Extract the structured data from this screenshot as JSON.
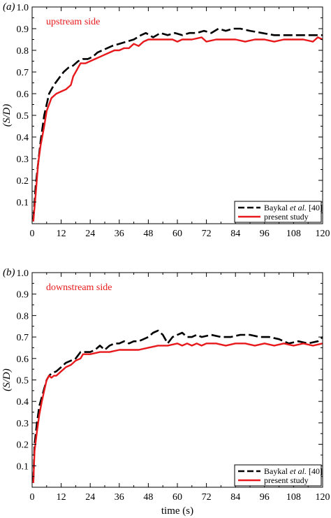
{
  "colors": {
    "baykal": "#000000",
    "present": "#e8191c",
    "annotation": "#e8191c"
  },
  "chart_data": [
    {
      "type": "line",
      "panel_label": "(a)",
      "annotation": "upstream side",
      "ylabel": "(S/D)",
      "xlabel": "",
      "xlim": [
        0,
        120
      ],
      "ylim": [
        0,
        1.0
      ],
      "xticks": [
        "0",
        "12",
        "24",
        "36",
        "48",
        "60",
        "72",
        "84",
        "96",
        "108",
        "120"
      ],
      "yticks": [
        "0.1",
        "0.2",
        "0.3",
        "0.4",
        "0.5",
        "0.6",
        "0.7",
        "0.8",
        "0.9",
        "1.0"
      ],
      "legend_position": "bottom-right",
      "grid": false,
      "series": [
        {
          "name": "Baykal et al. [40]",
          "style": "dashed",
          "color": "#000000",
          "x": [
            0.5,
            1.5,
            2.5,
            3.5,
            5,
            7,
            9,
            11,
            13,
            15,
            17,
            19,
            21,
            23,
            25,
            27,
            29,
            31,
            33,
            36,
            39,
            42,
            45,
            47,
            50,
            53,
            56,
            59,
            62,
            65,
            68,
            71,
            74,
            77,
            80,
            83,
            86,
            90,
            95,
            100,
            105,
            110,
            115,
            120
          ],
          "y": [
            0.02,
            0.18,
            0.28,
            0.38,
            0.5,
            0.6,
            0.64,
            0.67,
            0.7,
            0.72,
            0.73,
            0.75,
            0.76,
            0.76,
            0.77,
            0.79,
            0.8,
            0.81,
            0.82,
            0.83,
            0.84,
            0.85,
            0.87,
            0.88,
            0.86,
            0.88,
            0.87,
            0.88,
            0.87,
            0.88,
            0.88,
            0.89,
            0.88,
            0.9,
            0.89,
            0.9,
            0.9,
            0.89,
            0.88,
            0.87,
            0.87,
            0.87,
            0.87,
            0.87
          ]
        },
        {
          "name": "present study",
          "style": "solid",
          "color": "#e8191c",
          "x": [
            0.5,
            1.5,
            2.5,
            3.5,
            5,
            6,
            8,
            10,
            12,
            14,
            16,
            17,
            18,
            20,
            22,
            24,
            26,
            28,
            30,
            32,
            34,
            36,
            38,
            40,
            42,
            44,
            46,
            48,
            50,
            54,
            58,
            60,
            62,
            66,
            70,
            72,
            76,
            80,
            84,
            88,
            92,
            96,
            100,
            104,
            108,
            112,
            116,
            118,
            120
          ],
          "y": [
            0.01,
            0.14,
            0.28,
            0.36,
            0.45,
            0.52,
            0.58,
            0.6,
            0.61,
            0.62,
            0.64,
            0.68,
            0.7,
            0.74,
            0.74,
            0.75,
            0.76,
            0.77,
            0.78,
            0.79,
            0.8,
            0.8,
            0.81,
            0.81,
            0.83,
            0.82,
            0.84,
            0.85,
            0.85,
            0.85,
            0.85,
            0.84,
            0.85,
            0.85,
            0.86,
            0.84,
            0.85,
            0.85,
            0.85,
            0.84,
            0.85,
            0.85,
            0.84,
            0.85,
            0.85,
            0.85,
            0.84,
            0.86,
            0.85
          ]
        }
      ]
    },
    {
      "type": "line",
      "panel_label": "(b)",
      "annotation": "downstream side",
      "ylabel": "(S/D)",
      "xlabel": "time (s)",
      "xlim": [
        0,
        120
      ],
      "ylim": [
        0,
        1.0
      ],
      "xticks": [
        "0",
        "12",
        "24",
        "36",
        "48",
        "60",
        "72",
        "84",
        "96",
        "108",
        "120"
      ],
      "yticks": [
        "0.1",
        "0.2",
        "0.3",
        "0.4",
        "0.5",
        "0.6",
        "0.7",
        "0.8",
        "0.9",
        "1.0"
      ],
      "legend_position": "bottom-right",
      "grid": false,
      "series": [
        {
          "name": "Baykal et al. [40]",
          "style": "dashed",
          "color": "#000000",
          "x": [
            0.5,
            1,
            2,
            3,
            4,
            5,
            6,
            7,
            8,
            10,
            12,
            14,
            16,
            18,
            20,
            22,
            24,
            26,
            28,
            30,
            32,
            34,
            36,
            38,
            40,
            42,
            44,
            46,
            48,
            50,
            52,
            54,
            56,
            58,
            60,
            62,
            64,
            66,
            68,
            70,
            74,
            78,
            82,
            86,
            90,
            94,
            98,
            102,
            106,
            110,
            114,
            118,
            120
          ],
          "y": [
            0.03,
            0.2,
            0.3,
            0.38,
            0.42,
            0.46,
            0.5,
            0.52,
            0.53,
            0.54,
            0.56,
            0.58,
            0.59,
            0.6,
            0.63,
            0.63,
            0.63,
            0.64,
            0.66,
            0.64,
            0.66,
            0.67,
            0.67,
            0.68,
            0.67,
            0.68,
            0.68,
            0.69,
            0.7,
            0.72,
            0.73,
            0.71,
            0.67,
            0.7,
            0.71,
            0.72,
            0.7,
            0.7,
            0.71,
            0.7,
            0.71,
            0.7,
            0.7,
            0.71,
            0.71,
            0.7,
            0.7,
            0.69,
            0.67,
            0.68,
            0.67,
            0.68,
            0.7
          ]
        },
        {
          "name": "present study",
          "style": "solid",
          "color": "#e8191c",
          "x": [
            0.5,
            1,
            2,
            3,
            4,
            5,
            6,
            7,
            8,
            9,
            10,
            12,
            14,
            16,
            18,
            20,
            21,
            24,
            28,
            32,
            36,
            40,
            44,
            48,
            52,
            56,
            60,
            62,
            64,
            66,
            68,
            70,
            72,
            76,
            80,
            84,
            88,
            92,
            96,
            100,
            104,
            108,
            112,
            116,
            120
          ],
          "y": [
            0.02,
            0.17,
            0.26,
            0.34,
            0.4,
            0.45,
            0.5,
            0.52,
            0.51,
            0.52,
            0.52,
            0.54,
            0.56,
            0.57,
            0.59,
            0.6,
            0.62,
            0.62,
            0.63,
            0.63,
            0.64,
            0.64,
            0.64,
            0.65,
            0.66,
            0.66,
            0.67,
            0.66,
            0.67,
            0.66,
            0.67,
            0.66,
            0.67,
            0.67,
            0.66,
            0.67,
            0.67,
            0.66,
            0.67,
            0.66,
            0.67,
            0.66,
            0.67,
            0.66,
            0.67
          ]
        }
      ]
    }
  ]
}
